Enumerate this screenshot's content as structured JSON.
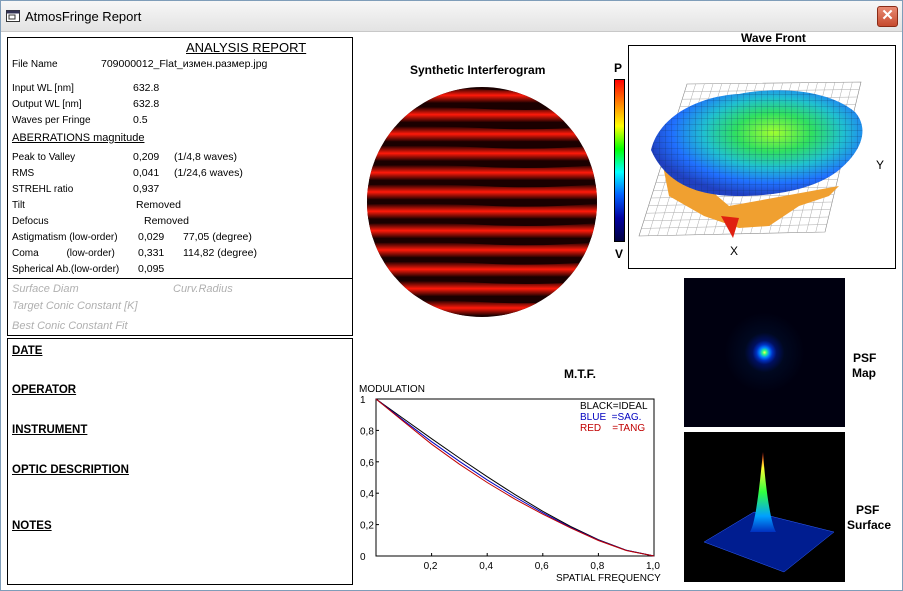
{
  "window": {
    "title": "AtmosFringe  Report",
    "close_label": "✕"
  },
  "report": {
    "heading": "ANALYSIS  REPORT",
    "file_name_label": "File Name",
    "file_name": "709000012_Flat_измен.размер.jpg",
    "input_wl_label": "Input  WL [nm]",
    "input_wl": "632.8",
    "output_wl_label": "Output WL [nm]",
    "output_wl": "632.8",
    "wpf_label": "Waves per Fringe",
    "wpf": "0.5",
    "aberr_heading": "ABERRATIONS magnitude",
    "ptv_label": "Peak to Valley",
    "ptv": "0,209",
    "ptv_waves": "(1/4,8 waves)",
    "rms_label": "RMS",
    "rms": "0,041",
    "rms_waves": "(1/24,6 waves)",
    "strehl_label": "STREHL ratio",
    "strehl": "0,937",
    "tilt_label": "Tilt",
    "tilt": "Removed",
    "defocus_label": "Defocus",
    "defocus": "Removed",
    "astig_label": "Astigmatism  (low-order)",
    "astig": "0,029",
    "astig_deg": "77,05  (degree)",
    "coma_label": "Coma          (low-order)",
    "coma": "0,331",
    "coma_deg": "114,82  (degree)",
    "spher_label": "Spherical Ab.(low-order)",
    "spher": "0,095",
    "surface_diam": "Surface Diam",
    "curv_radius": "Curv.Radius",
    "target_conic": "Target Conic Constant [K]",
    "best_conic": "Best Conic Constant Fit"
  },
  "info": {
    "date": "DATE",
    "operator": "OPERATOR",
    "instrument": "INSTRUMENT",
    "optic": "OPTIC DESCRIPTION",
    "notes": "NOTES"
  },
  "interferogram": {
    "title": "Synthetic Interferogram"
  },
  "wavefront": {
    "title": "Wave Front",
    "scale_top": "P",
    "scale_bottom": "V",
    "x_label": "X",
    "y_label": "Y"
  },
  "psf": {
    "map_label_1": "PSF",
    "map_label_2": "Map",
    "surface_label_1": "PSF",
    "surface_label_2": "Surface"
  },
  "chart_data": {
    "type": "line",
    "title": "M.T.F.",
    "ylabel": "MODULATION",
    "xlabel": "SPATIAL FREQUENCY",
    "xlim": [
      0,
      1
    ],
    "ylim": [
      0,
      1
    ],
    "x_ticks": [
      "0,2",
      "0,4",
      "0,6",
      "0,8",
      "1,0"
    ],
    "y_ticks": [
      "0",
      "0,2",
      "0,4",
      "0,6",
      "0,8",
      "1"
    ],
    "legend": [
      "BLACK=IDEAL",
      "BLUE  =SAG.",
      "RED    =TANG"
    ],
    "legend_colors": [
      "#000000",
      "#0000c0",
      "#c00000"
    ],
    "x": [
      0,
      0.1,
      0.2,
      0.3,
      0.4,
      0.5,
      0.6,
      0.7,
      0.8,
      0.9,
      1.0
    ],
    "series": [
      {
        "name": "IDEAL",
        "color": "#000000",
        "values": [
          1,
          0.873,
          0.747,
          0.624,
          0.505,
          0.391,
          0.285,
          0.188,
          0.104,
          0.037,
          0
        ]
      },
      {
        "name": "SAG.",
        "color": "#0000c0",
        "values": [
          1,
          0.862,
          0.728,
          0.603,
          0.485,
          0.376,
          0.275,
          0.182,
          0.101,
          0.036,
          0
        ]
      },
      {
        "name": "TANG",
        "color": "#c00000",
        "values": [
          1,
          0.855,
          0.712,
          0.585,
          0.468,
          0.362,
          0.266,
          0.179,
          0.099,
          0.035,
          0
        ]
      }
    ]
  }
}
